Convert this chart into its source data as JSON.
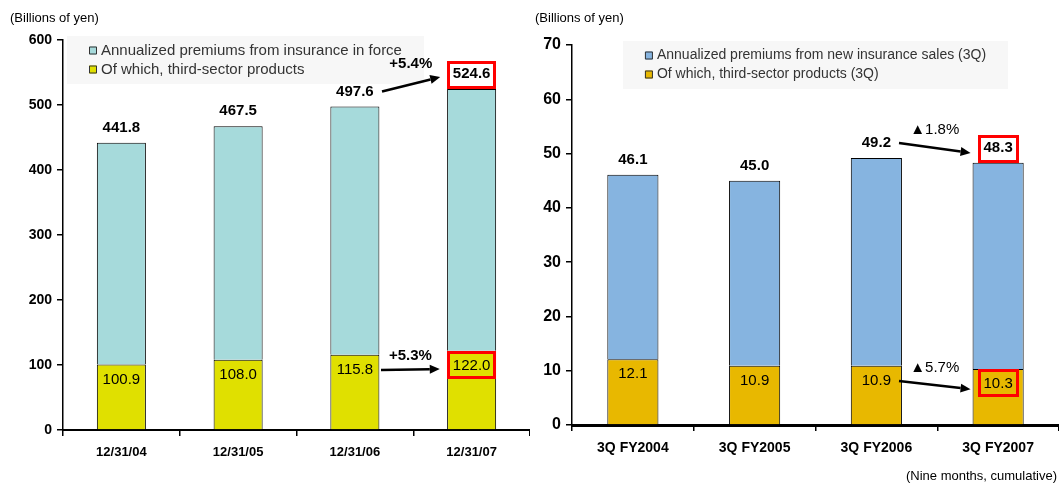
{
  "chart_data": [
    {
      "type": "bar",
      "ylabel": "(Billions of yen)",
      "categories": [
        "12/31/04",
        "12/31/05",
        "12/31/06",
        "12/31/07"
      ],
      "stacked": true,
      "series": [
        {
          "name": "Of which, third-sector products",
          "color": "#e0e000",
          "values": [
            100.9,
            108.0,
            115.8,
            122.0
          ],
          "value_labels": [
            "100.9",
            "108.0",
            "115.8",
            "122.0"
          ]
        },
        {
          "name": "Annualized premiums from insurance in force",
          "color": "#a6dadb",
          "values": [
            340.9,
            359.5,
            381.8,
            402.6
          ]
        }
      ],
      "totals": [
        "441.8",
        "467.5",
        "497.6",
        "524.6"
      ],
      "ylim": [
        0,
        600
      ],
      "yticks": [
        0,
        100,
        200,
        300,
        400,
        500,
        600
      ],
      "legend": "top left",
      "annotations": [
        "+5.4%",
        "+5.3%"
      ]
    },
    {
      "type": "bar",
      "ylabel": "(Billions of yen)",
      "categories": [
        "3Q FY2004",
        "3Q FY2005",
        "3Q FY2006",
        "3Q FY2007"
      ],
      "stacked": true,
      "series": [
        {
          "name": "Of which, third-sector products (3Q)",
          "color": "#e8b800",
          "values": [
            12.1,
            10.9,
            10.9,
            10.3
          ],
          "value_labels": [
            "12.1",
            "10.9",
            "10.9",
            "10.3"
          ]
        },
        {
          "name": "Annualized premiums from new insurance sales (3Q)",
          "color": "#86b4e0",
          "values": [
            34.0,
            34.1,
            38.3,
            38.0
          ]
        }
      ],
      "totals": [
        "46.1",
        "45.0",
        "49.2",
        "48.3"
      ],
      "ylim": [
        0,
        70
      ],
      "yticks": [
        0,
        10,
        20,
        30,
        40,
        50,
        60,
        70
      ],
      "legend": "top",
      "annotations": [
        "▲1.8%",
        "▲5.7%",
        "(Nine months, cumulative)"
      ]
    }
  ]
}
